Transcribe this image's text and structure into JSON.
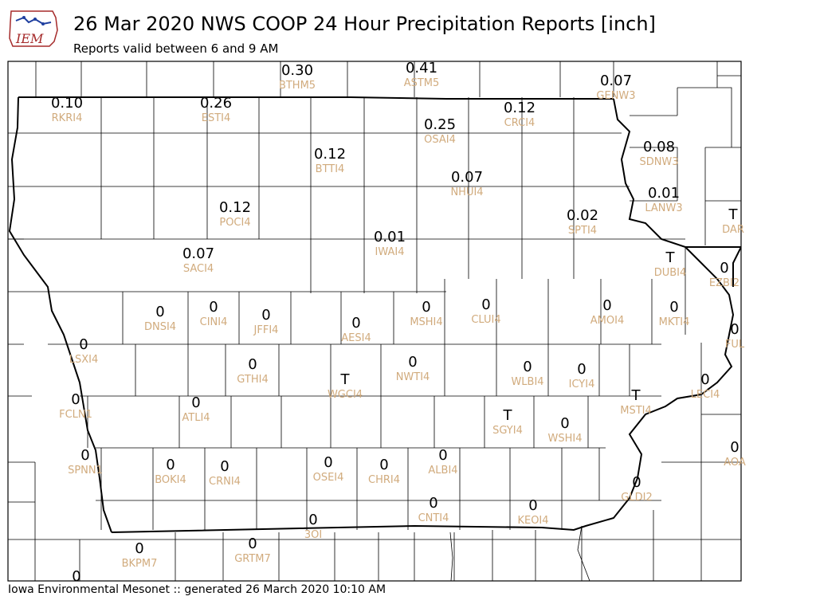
{
  "header": {
    "logo_text": "IEM",
    "title": "26 Mar 2020 NWS COOP 24 Hour Precipitation Reports [inch]",
    "subtitle": "Reports valid between 6 and 9 AM"
  },
  "footer": {
    "text": "Iowa Environmental Mesonet :: generated 26 March 2020 10:10 AM"
  },
  "colors": {
    "value_text": "#000000",
    "station_text": "#d1ab7d",
    "county_lines": "#000000",
    "logo_accent": "#a52a2a",
    "logo_blue": "#1f3f9f"
  },
  "stations": [
    {
      "id": "RKRI4",
      "value": "0.10"
    },
    {
      "id": "ESTI4",
      "value": "0.26"
    },
    {
      "id": "BTHM5",
      "value": "0.30"
    },
    {
      "id": "ASTM5",
      "value": "0.41"
    },
    {
      "id": "GENW3",
      "value": "0.07"
    },
    {
      "id": "CRCI4",
      "value": "0.12"
    },
    {
      "id": "OSAI4",
      "value": "0.25"
    },
    {
      "id": "BTTI4",
      "value": "0.12"
    },
    {
      "id": "SDNW3",
      "value": "0.08"
    },
    {
      "id": "LANW3",
      "value": "0.01"
    },
    {
      "id": "NHUI4",
      "value": "0.07"
    },
    {
      "id": "POCI4",
      "value": "0.12"
    },
    {
      "id": "SPTI4",
      "value": "0.02"
    },
    {
      "id": "DAR",
      "value": "T"
    },
    {
      "id": "IWAI4",
      "value": "0.01"
    },
    {
      "id": "SACI4",
      "value": "0.07"
    },
    {
      "id": "DUBI4",
      "value": "T"
    },
    {
      "id": "EZBI2",
      "value": "0"
    },
    {
      "id": "DNSI4",
      "value": "0"
    },
    {
      "id": "CINI4",
      "value": "0"
    },
    {
      "id": "JFFI4",
      "value": "0"
    },
    {
      "id": "AESI4",
      "value": "0"
    },
    {
      "id": "MSHI4",
      "value": "0"
    },
    {
      "id": "CLUI4",
      "value": "0"
    },
    {
      "id": "AMOI4",
      "value": "0"
    },
    {
      "id": "MKTI4",
      "value": "0"
    },
    {
      "id": "FUL",
      "value": "0"
    },
    {
      "id": "LSXI4",
      "value": "0"
    },
    {
      "id": "GTHI4",
      "value": "0"
    },
    {
      "id": "WGCI4",
      "value": "T"
    },
    {
      "id": "NWTI4",
      "value": "0"
    },
    {
      "id": "WLBI4",
      "value": "0"
    },
    {
      "id": "ICYI4",
      "value": "0"
    },
    {
      "id": "LECI4",
      "value": "0"
    },
    {
      "id": "FCLN1",
      "value": "0"
    },
    {
      "id": "ATLI4",
      "value": "0"
    },
    {
      "id": "MSTI4",
      "value": "T"
    },
    {
      "id": "SGYI4",
      "value": "T"
    },
    {
      "id": "WSHI4",
      "value": "0"
    },
    {
      "id": "SPNN1",
      "value": "0"
    },
    {
      "id": "BOKI4",
      "value": "0"
    },
    {
      "id": "CRNI4",
      "value": "0"
    },
    {
      "id": "OSEI4",
      "value": "0"
    },
    {
      "id": "CHRI4",
      "value": "0"
    },
    {
      "id": "ALBI4",
      "value": "0"
    },
    {
      "id": "AOA",
      "value": "0"
    },
    {
      "id": "GLDI2",
      "value": "0"
    },
    {
      "id": "CNTI4",
      "value": "0"
    },
    {
      "id": "KEOI4",
      "value": "0"
    },
    {
      "id": "3OI",
      "value": "0"
    },
    {
      "id": "BKPM7",
      "value": "0"
    },
    {
      "id": "GRTM7",
      "value": "0"
    },
    {
      "id": "",
      "value": "0"
    }
  ]
}
